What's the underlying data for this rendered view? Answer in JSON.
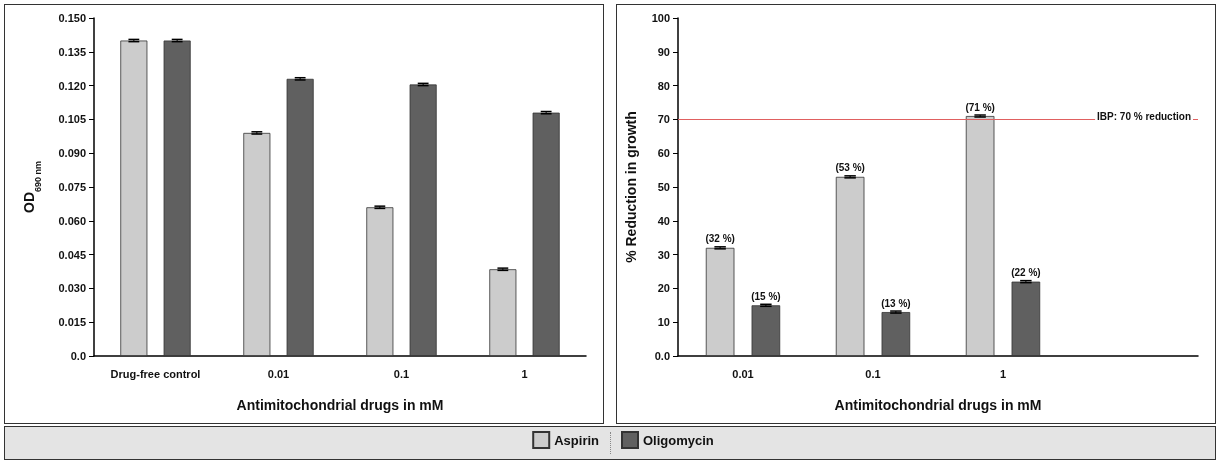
{
  "chart_data": [
    {
      "type": "bar",
      "xlabel": "Antimitochondrial drugs in mM",
      "ylabel": "OD$_{690 nm}$",
      "categories": [
        "Drug-free control",
        "0.01",
        "0.1",
        "1"
      ],
      "series": [
        {
          "name": "Aspirin",
          "color": "#cccccc",
          "values": [
            0.14,
            0.099,
            0.066,
            0.0385
          ],
          "errors": [
            0.0005,
            0.0005,
            0.0005,
            0.0005
          ]
        },
        {
          "name": "Oligomycin",
          "color": "#606060",
          "values": [
            0.14,
            0.123,
            0.1205,
            0.108
          ],
          "errors": [
            0.0005,
            0.0005,
            0.0005,
            0.0005
          ]
        }
      ],
      "ylim": [
        0,
        0.15
      ],
      "yticks": [
        {
          "value": 0,
          "label": "0.0"
        },
        {
          "value": 0.015,
          "label": "0.015"
        },
        {
          "value": 0.03,
          "label": "0.030"
        },
        {
          "value": 0.045,
          "label": "0.045"
        },
        {
          "value": 0.06,
          "label": "0.060"
        },
        {
          "value": 0.075,
          "label": "0.075"
        },
        {
          "value": 0.09,
          "label": "0.090"
        },
        {
          "value": 0.105,
          "label": "0.105"
        },
        {
          "value": 0.12,
          "label": "0.120"
        },
        {
          "value": 0.135,
          "label": "0.135"
        },
        {
          "value": 0.15,
          "label": "0.150"
        }
      ],
      "grid": false,
      "legend": "bottom"
    },
    {
      "type": "bar",
      "xlabel": "Antimitochondrial drugs in mM",
      "ylabel": "% Reduction in growth",
      "categories": [
        "0.01",
        "0.1",
        "1",
        null
      ],
      "series": [
        {
          "color": "#cccccc",
          "values": [
            32,
            53,
            71,
            null
          ],
          "errors": [
            0.3,
            0.3,
            0.3,
            null
          ],
          "value_labels": [
            "(32 %)",
            "(53 %)",
            "(71 %)",
            null
          ]
        },
        {
          "color": "#606060",
          "values": [
            15,
            13,
            22,
            null
          ],
          "errors": [
            0.3,
            0.3,
            0.3,
            null
          ],
          "value_labels": [
            "(15 %)",
            "(13 %)",
            "(22 %)",
            null
          ]
        }
      ],
      "ylim": [
        0,
        100
      ],
      "yticks": [
        {
          "value": 0,
          "label": "0.0"
        },
        10,
        20,
        30,
        40,
        50,
        60,
        70,
        80,
        90,
        100
      ],
      "ref_lines": [
        {
          "axis": "y",
          "value": 70,
          "label": "IBP: 70 % reduction",
          "color": "#e06060"
        }
      ],
      "grid": false
    }
  ]
}
